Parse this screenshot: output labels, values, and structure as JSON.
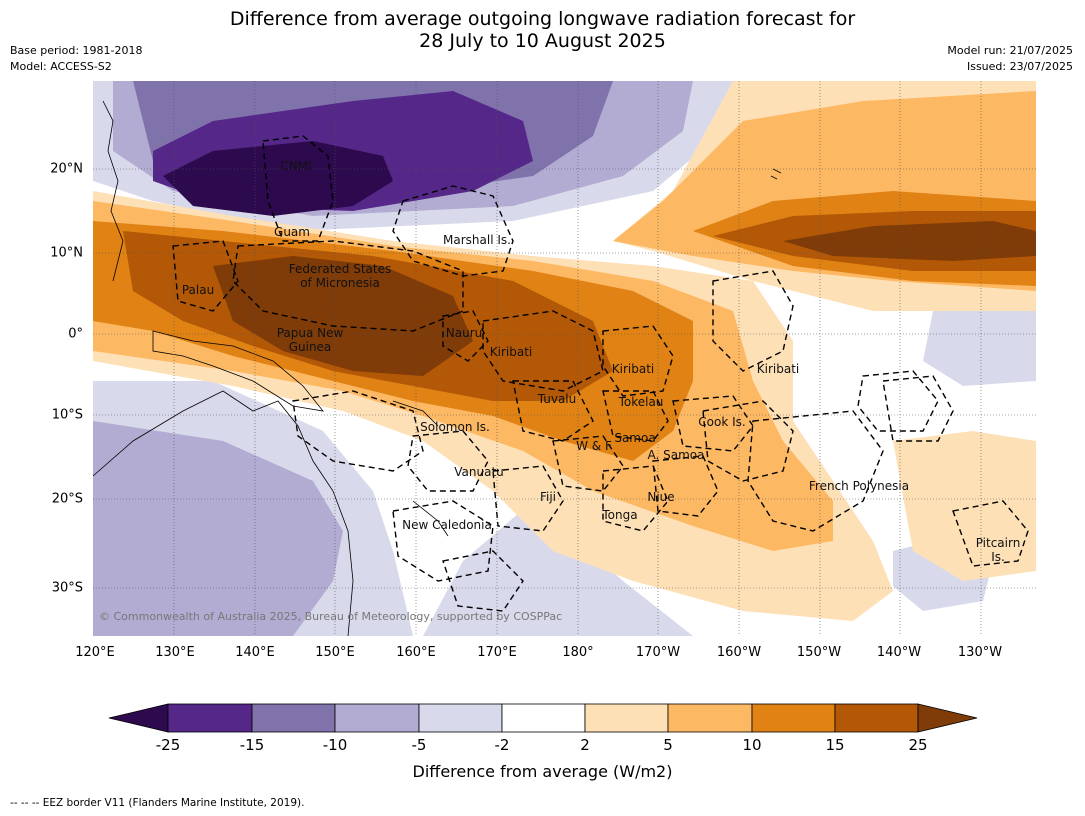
{
  "title": {
    "line1": "Difference from average outgoing longwave radiation forecast for",
    "line2": "28 July to 10 August 2025"
  },
  "meta_left": {
    "base_period": "Base period: 1981-2018",
    "model": "Model: ACCESS-S2"
  },
  "meta_right": {
    "model_run": "Model run: 21/07/2025",
    "issued": "Issued: 23/07/2025"
  },
  "map": {
    "lon_labels": [
      "120°E",
      "130°E",
      "140°E",
      "150°E",
      "160°E",
      "170°E",
      "180°",
      "170°W",
      "160°W",
      "150°W",
      "140°W",
      "130°W"
    ],
    "lat_labels": [
      "20°N",
      "10°N",
      "0°",
      "10°S",
      "20°S",
      "30°S"
    ],
    "places": [
      {
        "name": "CNMI"
      },
      {
        "name": "Guam"
      },
      {
        "name": "Marshall Is."
      },
      {
        "name": "Federated States"
      },
      {
        "name": "of Micronesia"
      },
      {
        "name": "Palau"
      },
      {
        "name": "Papua New"
      },
      {
        "name": "Guinea"
      },
      {
        "name": "Nauru"
      },
      {
        "name": "Kiribati"
      },
      {
        "name": "Kiribati"
      },
      {
        "name": "Kiribati"
      },
      {
        "name": "Tuvalu"
      },
      {
        "name": "Tokelau"
      },
      {
        "name": "Solomon Is."
      },
      {
        "name": "W & F"
      },
      {
        "name": "Samoa"
      },
      {
        "name": "A. Samoa"
      },
      {
        "name": "Cook Is."
      },
      {
        "name": "Vanuatu"
      },
      {
        "name": "Fiji"
      },
      {
        "name": "Niue"
      },
      {
        "name": "Tonga"
      },
      {
        "name": "New Caledonia"
      },
      {
        "name": "French Polynesia"
      },
      {
        "name": "Pitcairn"
      },
      {
        "name": "Is."
      }
    ],
    "copyright": "© Commonwealth of Australia 2025, Bureau of Meteorology, supported by COSPPac"
  },
  "colorbar": {
    "ticks": [
      "-25",
      "-15",
      "-10",
      "-5",
      "-2",
      "2",
      "5",
      "10",
      "15",
      "25"
    ],
    "colors": [
      "#2d0a4e",
      "#542788",
      "#8073ac",
      "#b2abd2",
      "#d8daeb",
      "#ffffff",
      "#fee0b6",
      "#fdb863",
      "#e08214",
      "#b35806",
      "#7f3b08"
    ],
    "label": "Difference from average (W/m2)"
  },
  "footnote": "--  --  -- EEZ border V11 (Flanders Marine Institute, 2019)."
}
